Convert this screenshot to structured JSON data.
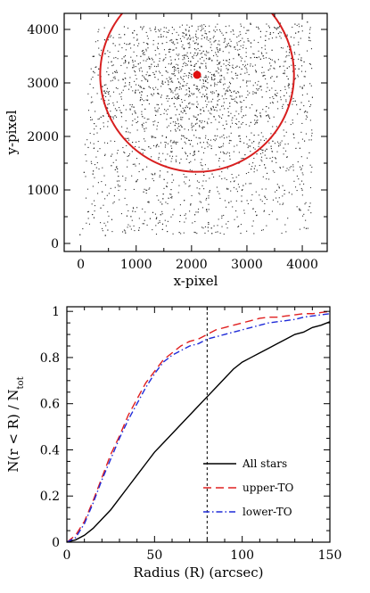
{
  "chart_data": [
    {
      "type": "scatter",
      "xlabel": "x-pixel",
      "ylabel": "y-pixel",
      "xlim": [
        -300,
        4450
      ],
      "ylim": [
        -150,
        4300
      ],
      "x_ticks": [
        0,
        1000,
        2000,
        3000,
        4000
      ],
      "y_ticks": [
        0,
        1000,
        2000,
        3000,
        4000
      ],
      "x_tick_labels": [
        "0",
        "1000",
        "2000",
        "3000",
        "4000"
      ],
      "y_tick_labels": [
        "0",
        "1000",
        "2000",
        "3000",
        "4000"
      ],
      "field_polygon": [
        [
          -50,
          150
        ],
        [
          4150,
          200
        ],
        [
          4200,
          4150
        ],
        [
          200,
          4050
        ]
      ],
      "gap_band": {
        "y_left": 1990,
        "y_right": 2190,
        "half_width": 35
      },
      "center": {
        "x": 2100,
        "y": 3150
      },
      "circle_radius": 1750,
      "points_drawn": 2600,
      "colors": {
        "points": "#2b2b2b",
        "circle": "#d81f1f",
        "center": "#e01010"
      }
    },
    {
      "type": "line",
      "xlabel": "Radius (R) (arcsec)",
      "ylabel": "N(r < R) / N",
      "ylabel_subscript": "tot",
      "xlim": [
        0,
        150
      ],
      "ylim": [
        0,
        1.02
      ],
      "x_ticks": [
        0,
        50,
        100,
        150
      ],
      "y_ticks": [
        0,
        0.2,
        0.4,
        0.6,
        0.8,
        1
      ],
      "x_tick_labels": [
        "0",
        "50",
        "100",
        "150"
      ],
      "y_tick_labels": [
        "0",
        "0.2",
        "0.4",
        "0.6",
        "0.8",
        "1"
      ],
      "vline_x": 80,
      "legend_position": "lower-right",
      "series": [
        {
          "name": "All stars",
          "style": "solid",
          "color": "#000000",
          "x": [
            0,
            5,
            10,
            15,
            20,
            25,
            30,
            35,
            40,
            45,
            50,
            55,
            60,
            65,
            70,
            75,
            80,
            85,
            90,
            95,
            100,
            105,
            110,
            115,
            120,
            125,
            130,
            135,
            140,
            145,
            150
          ],
          "y": [
            0,
            0.01,
            0.03,
            0.06,
            0.1,
            0.14,
            0.19,
            0.24,
            0.29,
            0.34,
            0.39,
            0.43,
            0.47,
            0.51,
            0.55,
            0.59,
            0.63,
            0.67,
            0.71,
            0.75,
            0.78,
            0.8,
            0.82,
            0.84,
            0.86,
            0.88,
            0.9,
            0.91,
            0.93,
            0.94,
            0.955
          ]
        },
        {
          "name": "upper-TO",
          "style": "dashed",
          "color": "#e02020",
          "x": [
            0,
            5,
            10,
            15,
            20,
            25,
            30,
            35,
            40,
            45,
            50,
            55,
            60,
            65,
            70,
            75,
            80,
            85,
            90,
            95,
            100,
            105,
            110,
            115,
            120,
            125,
            130,
            135,
            140,
            145,
            150
          ],
          "y": [
            0,
            0.03,
            0.09,
            0.18,
            0.28,
            0.38,
            0.46,
            0.55,
            0.62,
            0.69,
            0.74,
            0.79,
            0.82,
            0.85,
            0.87,
            0.88,
            0.9,
            0.92,
            0.93,
            0.94,
            0.95,
            0.96,
            0.97,
            0.975,
            0.975,
            0.98,
            0.985,
            0.99,
            0.99,
            0.995,
            1.0
          ]
        },
        {
          "name": "lower-TO",
          "style": "dashdot",
          "color": "#1f2bd8",
          "x": [
            0,
            5,
            10,
            15,
            20,
            25,
            30,
            35,
            40,
            45,
            50,
            55,
            60,
            65,
            70,
            75,
            80,
            85,
            90,
            95,
            100,
            105,
            110,
            115,
            120,
            125,
            130,
            135,
            140,
            145,
            150
          ],
          "y": [
            0,
            0.02,
            0.08,
            0.17,
            0.27,
            0.36,
            0.45,
            0.53,
            0.6,
            0.67,
            0.73,
            0.78,
            0.81,
            0.83,
            0.85,
            0.86,
            0.88,
            0.89,
            0.9,
            0.91,
            0.92,
            0.93,
            0.94,
            0.95,
            0.955,
            0.96,
            0.965,
            0.975,
            0.98,
            0.985,
            0.99
          ]
        }
      ]
    }
  ]
}
